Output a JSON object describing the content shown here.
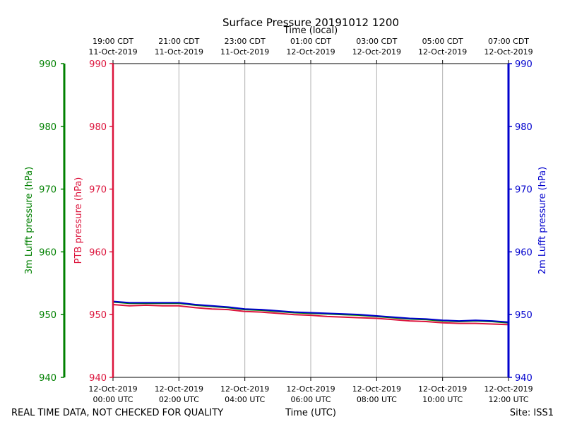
{
  "chart_data": {
    "type": "line",
    "title": "Surface Pressure 20191012 1200",
    "top_axis_label": "Time (local)",
    "xlabel": "Time (UTC)",
    "x_unit": "hours since 12-Oct-2019 00:00 UTC",
    "xlim": [
      0,
      12
    ],
    "ylim": [
      940,
      990
    ],
    "y_ticks": [
      940,
      950,
      960,
      970,
      980,
      990
    ],
    "bottom_ticks": [
      {
        "x": 0,
        "line1": "12-Oct-2019",
        "line2": "00:00 UTC"
      },
      {
        "x": 2,
        "line1": "12-Oct-2019",
        "line2": "02:00 UTC"
      },
      {
        "x": 4,
        "line1": "12-Oct-2019",
        "line2": "04:00 UTC"
      },
      {
        "x": 6,
        "line1": "12-Oct-2019",
        "line2": "06:00 UTC"
      },
      {
        "x": 8,
        "line1": "12-Oct-2019",
        "line2": "08:00 UTC"
      },
      {
        "x": 10,
        "line1": "12-Oct-2019",
        "line2": "10:00 UTC"
      },
      {
        "x": 12,
        "line1": "12-Oct-2019",
        "line2": "12:00 UTC"
      }
    ],
    "top_ticks": [
      {
        "x": 0,
        "line1": "19:00 CDT",
        "line2": "11-Oct-2019"
      },
      {
        "x": 2,
        "line1": "21:00 CDT",
        "line2": "11-Oct-2019"
      },
      {
        "x": 4,
        "line1": "23:00 CDT",
        "line2": "11-Oct-2019"
      },
      {
        "x": 6,
        "line1": "01:00 CDT",
        "line2": "12-Oct-2019"
      },
      {
        "x": 8,
        "line1": "03:00 CDT",
        "line2": "12-Oct-2019"
      },
      {
        "x": 10,
        "line1": "05:00 CDT",
        "line2": "12-Oct-2019"
      },
      {
        "x": 12,
        "line1": "07:00 CDT",
        "line2": "12-Oct-2019"
      }
    ],
    "axes": [
      {
        "id": "lufft3m",
        "label": "3m Lufft pressure (hPa)",
        "color": "#008000"
      },
      {
        "id": "ptb",
        "label": "PTB pressure (hPa)",
        "color": "#dc143c"
      },
      {
        "id": "lufft2m",
        "label": "2m Lufft pressure (hPa)",
        "color": "#0000cd"
      }
    ],
    "series": [
      {
        "name": "PTB pressure",
        "color": "#dc143c",
        "x": [
          0,
          0.5,
          1,
          1.5,
          2,
          2.5,
          3,
          3.5,
          4,
          4.5,
          5,
          5.5,
          6,
          6.5,
          7,
          7.5,
          8,
          8.5,
          9,
          9.5,
          10,
          10.5,
          11,
          11.5,
          12
        ],
        "values": [
          951.6,
          951.4,
          951.5,
          951.4,
          951.4,
          951.1,
          950.9,
          950.8,
          950.5,
          950.4,
          950.2,
          950.0,
          949.9,
          949.7,
          949.6,
          949.5,
          949.4,
          949.2,
          949.0,
          948.9,
          948.7,
          948.6,
          948.6,
          948.5,
          948.4
        ]
      },
      {
        "name": "3m Lufft pressure",
        "color": "#008000",
        "x": [
          0,
          0.5,
          1,
          1.5,
          2,
          2.5,
          3,
          3.5,
          4,
          4.5,
          5,
          5.5,
          6,
          6.5,
          7,
          7.5,
          8,
          8.5,
          9,
          9.5,
          10,
          10.5,
          11,
          11.5,
          12
        ],
        "values": [
          952.0,
          951.8,
          951.8,
          951.8,
          951.8,
          951.5,
          951.3,
          951.1,
          950.8,
          950.7,
          950.5,
          950.3,
          950.2,
          950.1,
          950.0,
          949.9,
          949.7,
          949.5,
          949.3,
          949.2,
          949.0,
          948.9,
          949.0,
          948.9,
          948.7
        ]
      },
      {
        "name": "2m Lufft pressure",
        "color": "#0000cd",
        "x": [
          0,
          0.5,
          1,
          1.5,
          2,
          2.5,
          3,
          3.5,
          4,
          4.5,
          5,
          5.5,
          6,
          6.5,
          7,
          7.5,
          8,
          8.5,
          9,
          9.5,
          10,
          10.5,
          11,
          11.5,
          12
        ],
        "values": [
          952.1,
          951.9,
          951.9,
          951.9,
          951.9,
          951.6,
          951.4,
          951.2,
          950.9,
          950.8,
          950.6,
          950.4,
          950.3,
          950.2,
          950.1,
          950.0,
          949.8,
          949.6,
          949.4,
          949.3,
          949.1,
          949.0,
          949.1,
          949.0,
          948.8
        ]
      }
    ],
    "grid": "vertical",
    "footer_left": "REAL TIME DATA, NOT CHECKED FOR QUALITY",
    "footer_right": "Site: ISS1"
  }
}
